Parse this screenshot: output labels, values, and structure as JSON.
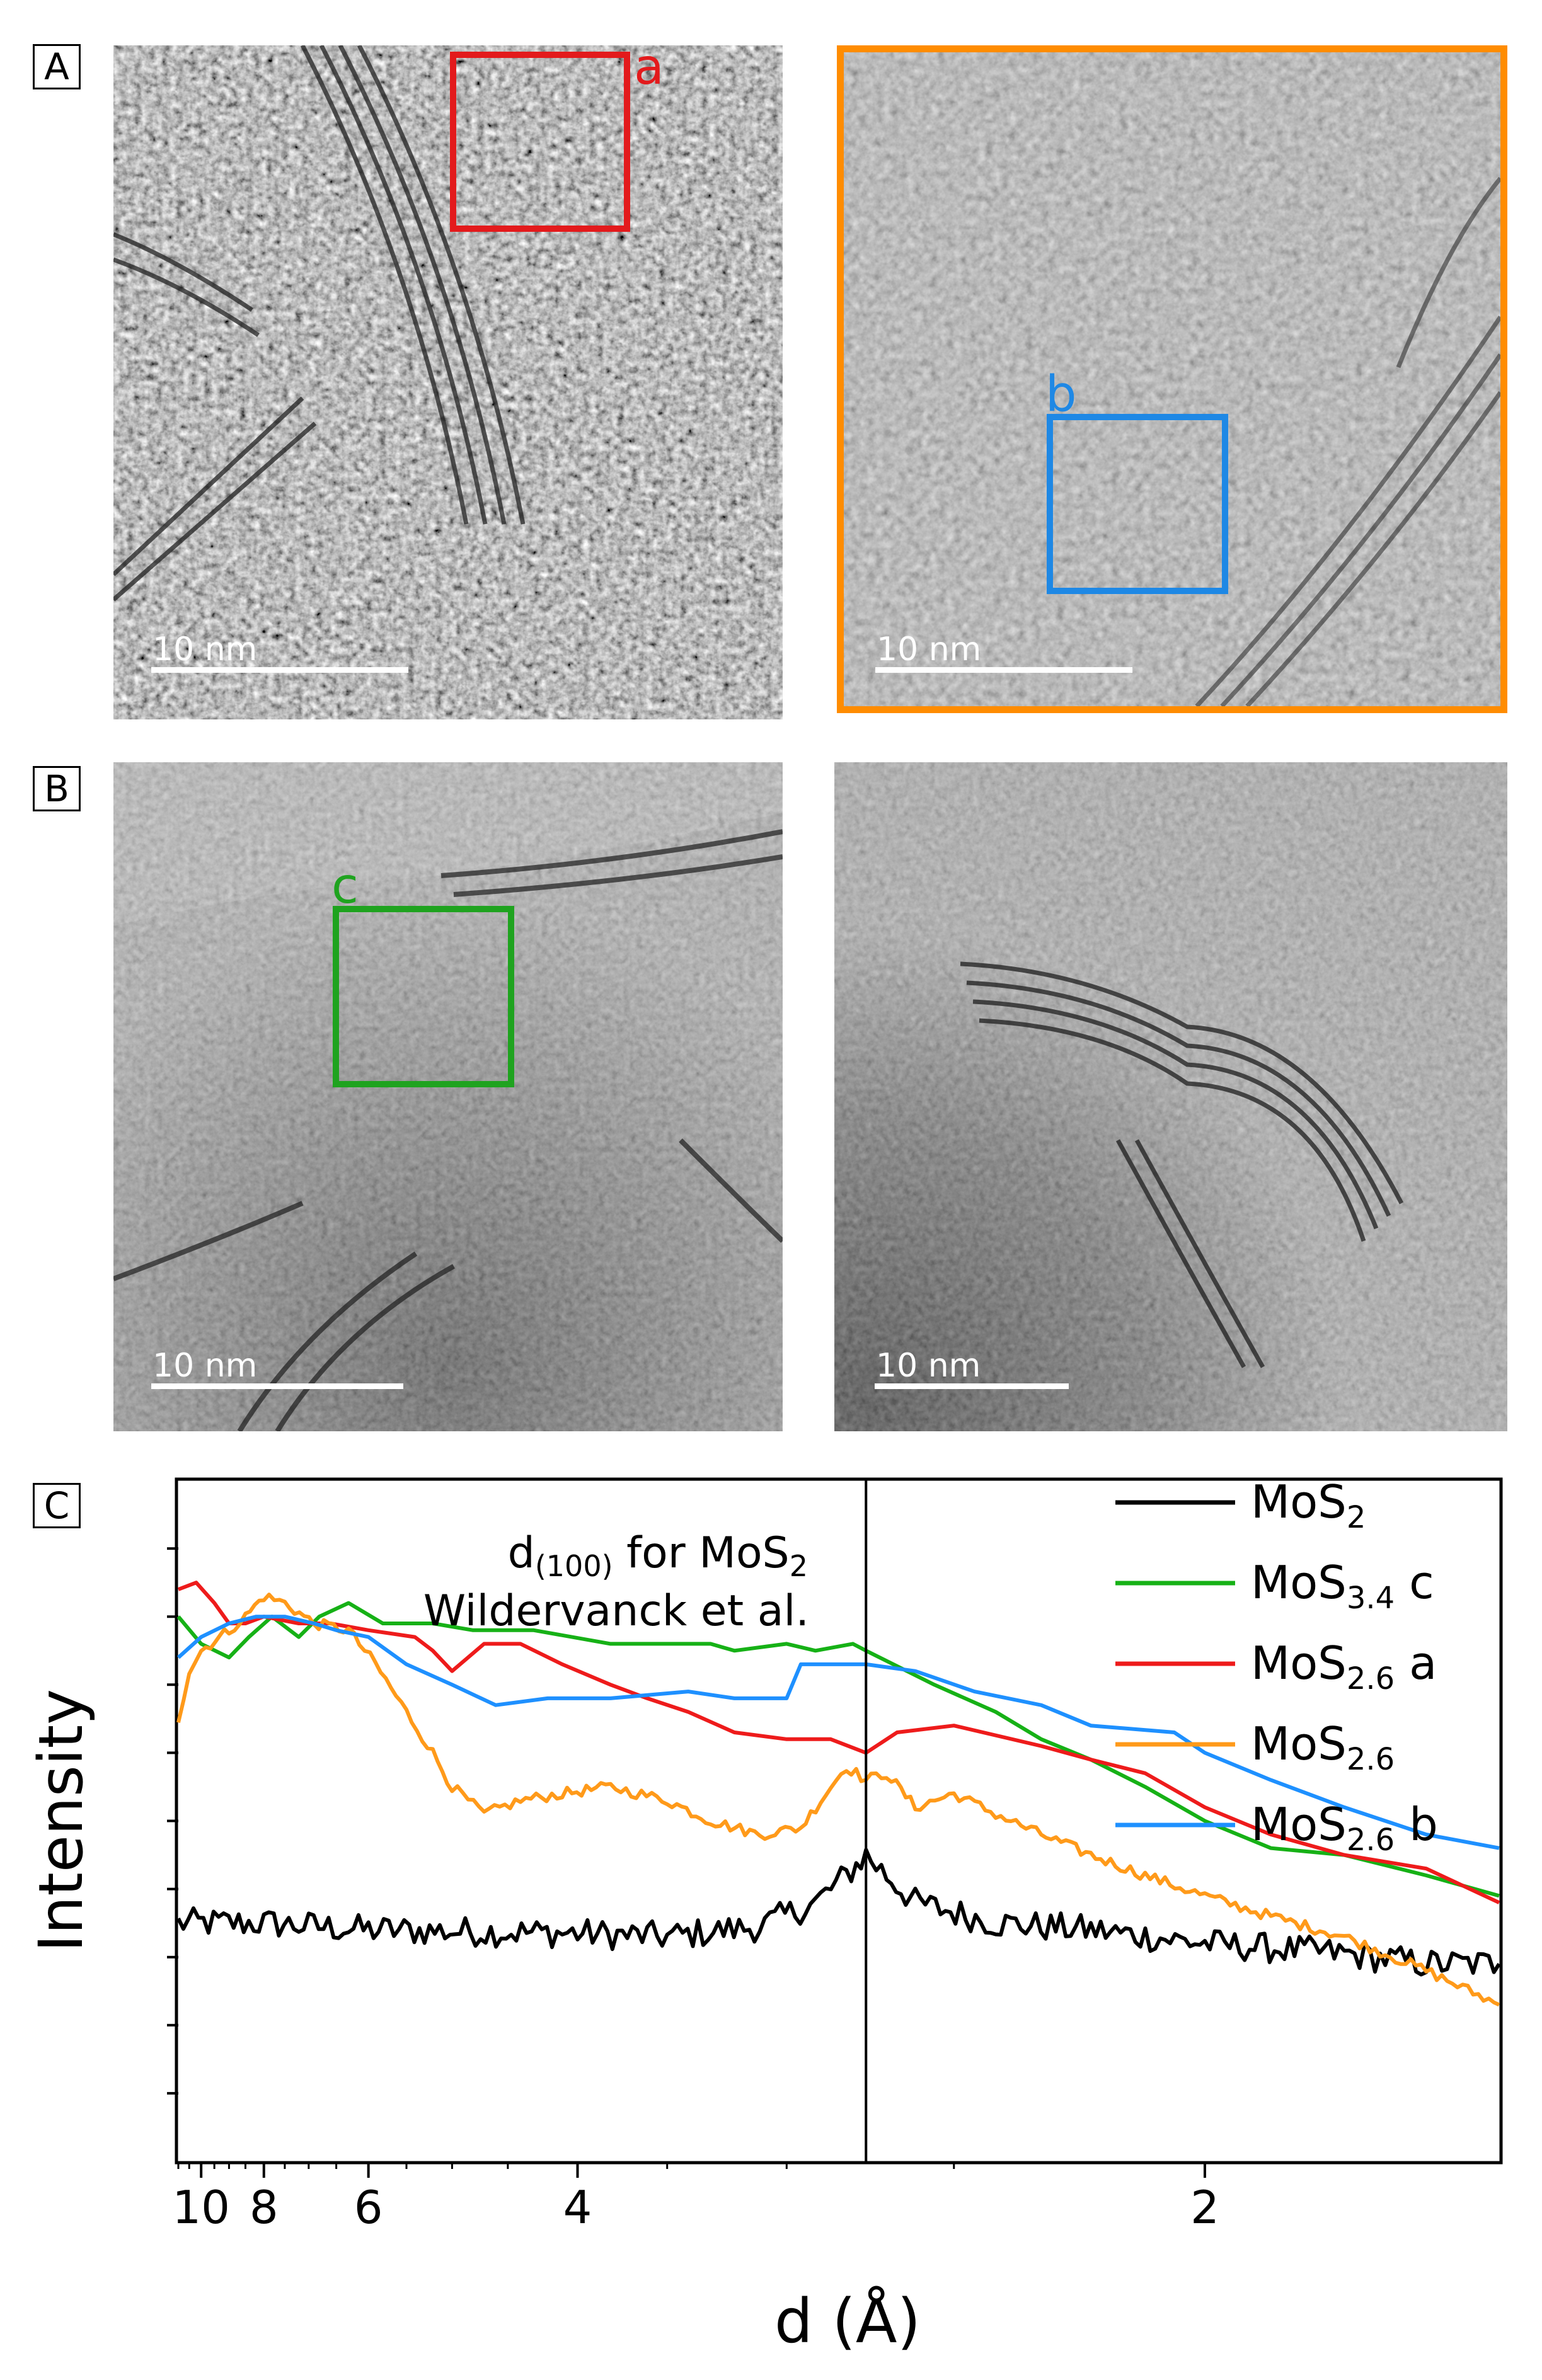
{
  "panels": {
    "A": {
      "label": "A",
      "left_roi": "a",
      "right_roi": "b",
      "scale_label": "10 nm"
    },
    "B": {
      "label": "B",
      "left_roi": "c",
      "scale_label": "10 nm"
    },
    "C": {
      "label": "C"
    }
  },
  "colors": {
    "roi_a": "#e31a1c",
    "roi_b": "#1e88e5",
    "roi_c": "#1fa31f",
    "frame_orange": "#ff8c00",
    "MoS2": "#000000",
    "MoS3.4 c": "#16b116",
    "MoS2.6 a": "#ee1b1b",
    "MoS2.6": "#ff9a1a",
    "MoS2.6 b": "#1e90ff"
  },
  "chart_data": {
    "type": "line",
    "xlabel": "d (Å)",
    "ylabel": "Intensity",
    "x_scale": "reciprocal",
    "x_ticks": [
      "10",
      "8",
      "6",
      "4",
      "2"
    ],
    "xlim": [
      11,
      1.62
    ],
    "annotation": {
      "line1": "d",
      "line1_sub": "(100)",
      "line1_rest": " for MoS",
      "line1_rest_sub": "2",
      "line2": "Wildervanck et al.",
      "d_value": 2.74
    },
    "legend": [
      {
        "base": "MoS",
        "sub": "2",
        "suffix": "",
        "key": "MoS2"
      },
      {
        "base": "MoS",
        "sub": "3.4",
        "suffix": " c",
        "key": "MoS3.4 c"
      },
      {
        "base": "MoS",
        "sub": "2.6",
        "suffix": " a",
        "key": "MoS2.6 a"
      },
      {
        "base": "MoS",
        "sub": "2.6",
        "suffix": "",
        "key": "MoS2.6"
      },
      {
        "base": "MoS",
        "sub": "2.6",
        "suffix": " b",
        "key": "MoS2.6 b"
      }
    ],
    "series": [
      {
        "name": "MoS2",
        "key": "MoS2",
        "noise": 0.22,
        "points": [
          [
            11,
            3.5
          ],
          [
            8,
            3.5
          ],
          [
            6,
            3.4
          ],
          [
            4,
            3.35
          ],
          [
            3.5,
            3.3
          ],
          [
            3.1,
            3.45
          ],
          [
            2.9,
            3.8
          ],
          [
            2.8,
            4.2
          ],
          [
            2.74,
            4.5
          ],
          [
            2.68,
            4.2
          ],
          [
            2.6,
            3.8
          ],
          [
            2.4,
            3.5
          ],
          [
            2.2,
            3.4
          ],
          [
            2,
            3.2
          ],
          [
            1.8,
            3.05
          ],
          [
            1.7,
            2.9
          ],
          [
            1.62,
            2.9
          ]
        ]
      },
      {
        "name": "MoS3.4 c",
        "key": "MoS3.4 c",
        "noise": 0,
        "points": [
          [
            11,
            8.0
          ],
          [
            10,
            7.6
          ],
          [
            9,
            7.4
          ],
          [
            8.4,
            7.7
          ],
          [
            7.8,
            8.0
          ],
          [
            7.2,
            7.7
          ],
          [
            6.8,
            8.0
          ],
          [
            6.3,
            8.2
          ],
          [
            5.8,
            7.9
          ],
          [
            5.2,
            7.9
          ],
          [
            4.8,
            7.8
          ],
          [
            4.3,
            7.8
          ],
          [
            3.8,
            7.6
          ],
          [
            3.3,
            7.6
          ],
          [
            3.2,
            7.5
          ],
          [
            3.0,
            7.6
          ],
          [
            2.9,
            7.5
          ],
          [
            2.78,
            7.6
          ],
          [
            2.74,
            7.5
          ],
          [
            2.55,
            7.0
          ],
          [
            2.4,
            6.6
          ],
          [
            2.3,
            6.2
          ],
          [
            2.2,
            5.9
          ],
          [
            2.1,
            5.5
          ],
          [
            2.0,
            5.0
          ],
          [
            1.9,
            4.6
          ],
          [
            1.8,
            4.5
          ],
          [
            1.7,
            4.2
          ],
          [
            1.62,
            3.9
          ]
        ]
      },
      {
        "name": "MoS2.6 a",
        "key": "MoS2.6 a",
        "noise": 0,
        "points": [
          [
            11,
            8.4
          ],
          [
            10.2,
            8.5
          ],
          [
            9.5,
            8.2
          ],
          [
            9,
            7.9
          ],
          [
            8.5,
            7.9
          ],
          [
            8,
            8.0
          ],
          [
            7.2,
            7.9
          ],
          [
            6.6,
            7.9
          ],
          [
            6,
            7.8
          ],
          [
            5.4,
            7.7
          ],
          [
            5.2,
            7.5
          ],
          [
            5,
            7.2
          ],
          [
            4.7,
            7.6
          ],
          [
            4.4,
            7.6
          ],
          [
            4.1,
            7.3
          ],
          [
            3.8,
            7.0
          ],
          [
            3.6,
            6.8
          ],
          [
            3.4,
            6.6
          ],
          [
            3.2,
            6.3
          ],
          [
            3.0,
            6.2
          ],
          [
            2.85,
            6.2
          ],
          [
            2.74,
            6.0
          ],
          [
            2.65,
            6.3
          ],
          [
            2.5,
            6.4
          ],
          [
            2.3,
            6.1
          ],
          [
            2.2,
            5.9
          ],
          [
            2.1,
            5.7
          ],
          [
            2.0,
            5.2
          ],
          [
            1.9,
            4.8
          ],
          [
            1.8,
            4.5
          ],
          [
            1.7,
            4.3
          ],
          [
            1.62,
            3.8
          ]
        ]
      },
      {
        "name": "MoS2.6",
        "key": "MoS2.6",
        "noise": 0.08,
        "points": [
          [
            11,
            6.5
          ],
          [
            10.5,
            7.2
          ],
          [
            10,
            7.5
          ],
          [
            9,
            7.8
          ],
          [
            8.5,
            8.0
          ],
          [
            8,
            8.3
          ],
          [
            7.5,
            8.2
          ],
          [
            6.9,
            7.9
          ],
          [
            6.3,
            7.8
          ],
          [
            5.9,
            7.3
          ],
          [
            5.5,
            6.6
          ],
          [
            5.2,
            6.0
          ],
          [
            5.0,
            5.5
          ],
          [
            4.7,
            5.1
          ],
          [
            4.4,
            5.3
          ],
          [
            4.1,
            5.4
          ],
          [
            3.8,
            5.5
          ],
          [
            3.5,
            5.3
          ],
          [
            3.3,
            5.0
          ],
          [
            3.1,
            4.8
          ],
          [
            2.95,
            4.9
          ],
          [
            2.85,
            5.5
          ],
          [
            2.8,
            5.8
          ],
          [
            2.74,
            5.6
          ],
          [
            2.68,
            5.7
          ],
          [
            2.6,
            5.2
          ],
          [
            2.5,
            5.4
          ],
          [
            2.4,
            5.1
          ],
          [
            2.3,
            4.8
          ],
          [
            2.2,
            4.5
          ],
          [
            2.1,
            4.2
          ],
          [
            2.0,
            3.9
          ],
          [
            1.9,
            3.6
          ],
          [
            1.8,
            3.3
          ],
          [
            1.7,
            2.8
          ],
          [
            1.62,
            2.3
          ]
        ]
      },
      {
        "name": "MoS2.6 b",
        "key": "MoS2.6 b",
        "noise": 0,
        "points": [
          [
            11,
            7.4
          ],
          [
            10,
            7.7
          ],
          [
            9,
            7.9
          ],
          [
            8.2,
            8.0
          ],
          [
            7.5,
            8.0
          ],
          [
            6.9,
            7.9
          ],
          [
            6.5,
            7.8
          ],
          [
            6,
            7.7
          ],
          [
            5.5,
            7.3
          ],
          [
            5.0,
            7.0
          ],
          [
            4.6,
            6.7
          ],
          [
            4.2,
            6.8
          ],
          [
            3.8,
            6.8
          ],
          [
            3.4,
            6.9
          ],
          [
            3.2,
            6.8
          ],
          [
            3.0,
            6.8
          ],
          [
            2.95,
            7.3
          ],
          [
            2.85,
            7.3
          ],
          [
            2.74,
            7.3
          ],
          [
            2.6,
            7.2
          ],
          [
            2.45,
            6.9
          ],
          [
            2.3,
            6.7
          ],
          [
            2.2,
            6.4
          ],
          [
            2.05,
            6.3
          ],
          [
            2.0,
            6.0
          ],
          [
            1.9,
            5.6
          ],
          [
            1.8,
            5.2
          ],
          [
            1.7,
            4.8
          ],
          [
            1.62,
            4.6
          ]
        ]
      }
    ]
  }
}
